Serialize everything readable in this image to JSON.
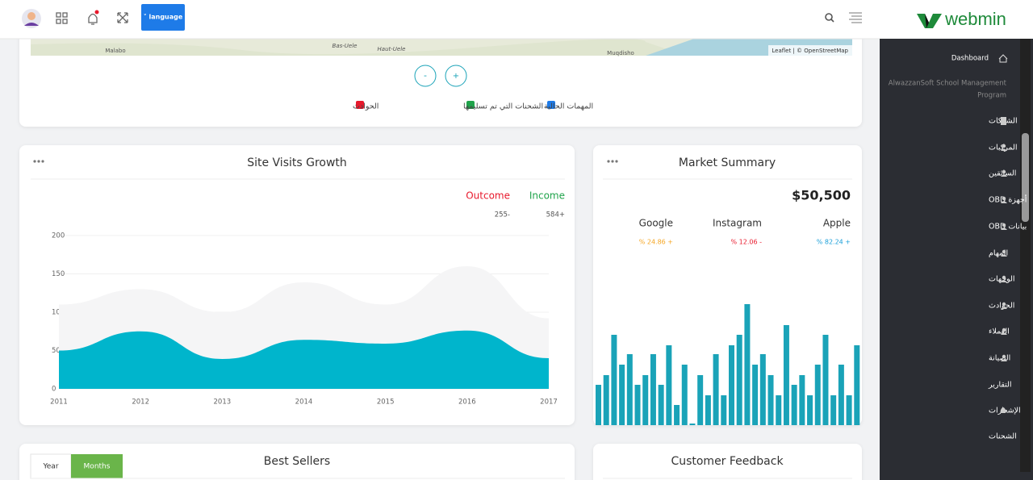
{
  "header": {
    "language_button": "˅ language",
    "logo": "webmin"
  },
  "sidebar": {
    "dashboard": "Dashboard",
    "program_name": [
      "AlwazzanSoft School Management",
      "Program"
    ],
    "items": [
      "الشركات",
      "المركبات",
      "السائقين",
      "أجهزة OBD",
      "بيانات OBD",
      "المهام",
      "الوجهات",
      "الحوادث",
      "العملاء",
      "الصيانة",
      "التقارير",
      "الإشعارات",
      "الشحنات"
    ]
  },
  "map": {
    "places": [
      "Malabo",
      "Bas-Uele",
      "Haut-Uele",
      "Muqdisho"
    ],
    "attribution": "Leaflet | © OpenStreetMap",
    "zoom_out": "-",
    "zoom_in": "+",
    "legend": [
      {
        "label": "المهمات الحالية",
        "color": "#1e7be8"
      },
      {
        "label": "الشحنات التي تم تسليمها",
        "color": "#1fa34a"
      },
      {
        "label": "الحوادث",
        "color": "#e8192c"
      }
    ]
  },
  "site_visits": {
    "type": "area",
    "title": "Site Visits Growth",
    "categories": [
      "2011",
      "2012",
      "2013",
      "2014",
      "2015",
      "2016",
      "2017"
    ],
    "ylim": [
      0,
      200
    ],
    "yticks": [
      0,
      50,
      100,
      150,
      200
    ],
    "series": [
      {
        "name": "Outcome",
        "total_label": "255-",
        "label_color": "#e8192c",
        "color": "#f5f5f6",
        "values": [
          110,
          130,
          100,
          139,
          110,
          160,
          92
        ]
      },
      {
        "name": "Income",
        "total_label": "584+",
        "label_color": "#1fa34a",
        "color": "#00b5cc",
        "values": [
          50,
          75,
          39,
          64,
          59,
          76,
          40
        ]
      }
    ]
  },
  "market_summary": {
    "title": "Market Summary",
    "total": "$50,500",
    "stocks": [
      {
        "name": "Apple",
        "change": "% 82.24 +",
        "color": "#1a9fd9"
      },
      {
        "name": "Instagram",
        "change": "% 12.06 -",
        "color": "#e8192c"
      },
      {
        "name": "Google",
        "change": "% 24.86 +",
        "color": "#f5a623"
      }
    ],
    "bars": {
      "type": "bar",
      "color": "#1aa3b8",
      "values": [
        50,
        62,
        112,
        75,
        88,
        50,
        62,
        88,
        50,
        99,
        25,
        75,
        2,
        62,
        37,
        88,
        37,
        99,
        112,
        150,
        75,
        88,
        62,
        37,
        124,
        50,
        62,
        37,
        75,
        112,
        37,
        75,
        37,
        99
      ]
    }
  },
  "best_sellers": {
    "title": "Best Sellers",
    "tabs": [
      "Year",
      "Months"
    ]
  },
  "customer_feedback": {
    "title": "Customer Feedback"
  }
}
